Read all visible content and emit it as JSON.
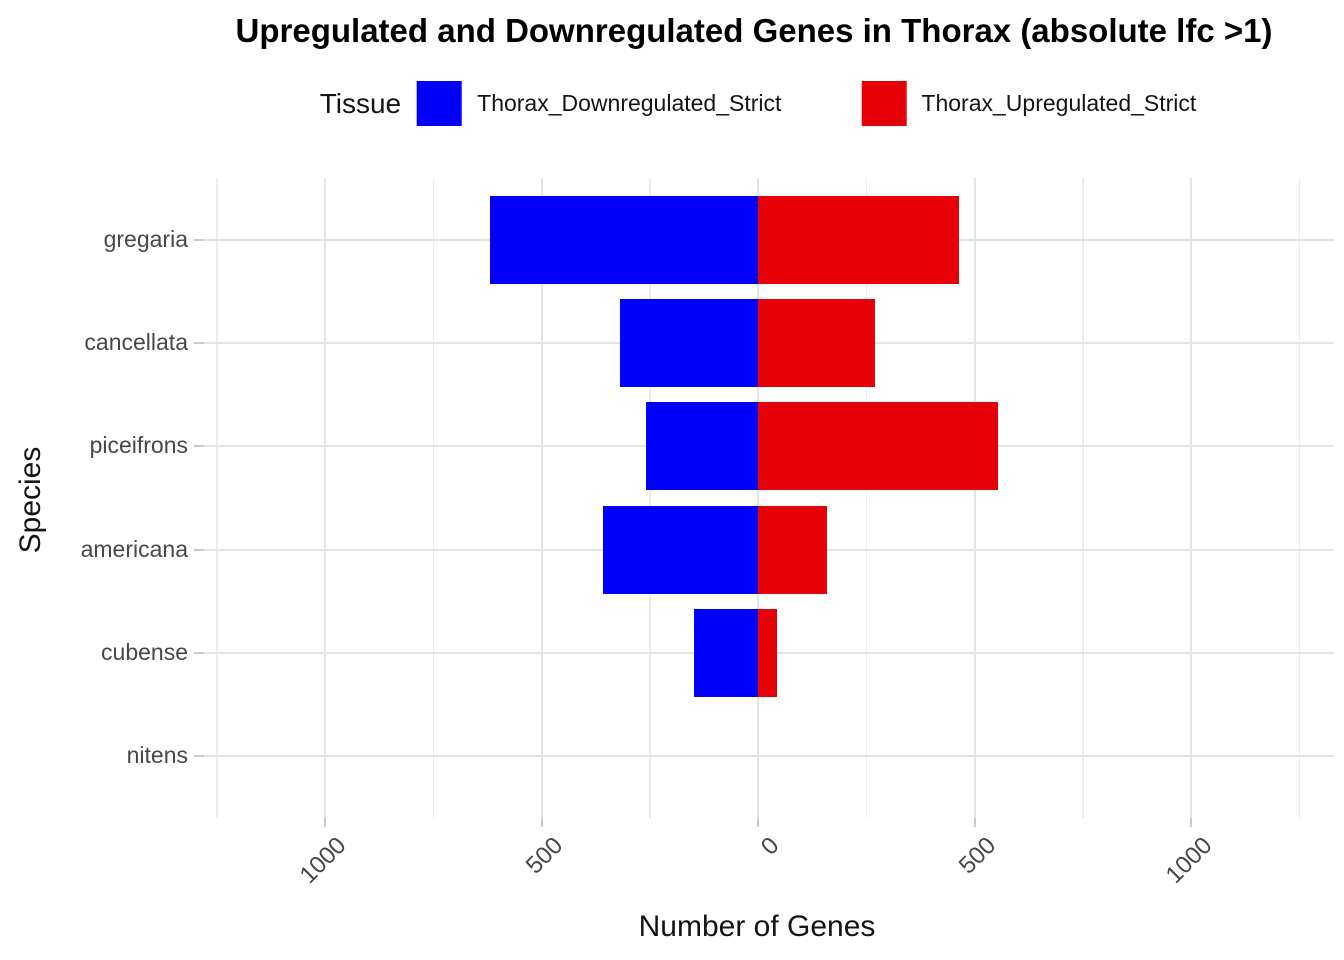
{
  "chart_data": {
    "type": "bar",
    "orientation": "horizontal-diverging",
    "title": "Upregulated and Downregulated Genes in Thorax (absolute lfc >1)",
    "xlabel": "Number of Genes",
    "ylabel": "Species",
    "legend_title": "Tissue",
    "legend_position": "top-center",
    "grid": "on",
    "categories": [
      "gregaria",
      "cancellata",
      "piceifrons",
      "americana",
      "cubense",
      "nitens"
    ],
    "series": [
      {
        "name": "Thorax_Downregulated_Strict",
        "color": "#0000ff",
        "direction": "negative",
        "values": [
          620,
          320,
          258,
          358,
          148,
          0
        ]
      },
      {
        "name": "Thorax_Upregulated_Strict",
        "color": "#e60008",
        "direction": "positive",
        "values": [
          465,
          270,
          555,
          158,
          44,
          0
        ]
      }
    ],
    "x_ticks": [
      -1000,
      -500,
      0,
      500,
      1000
    ],
    "x_tick_labels": [
      "1000",
      "500",
      "0",
      "500",
      "1000"
    ],
    "xlim": [
      -1280,
      1330
    ],
    "minor_grid_step": 250,
    "colors": {
      "downregulated": "#0000ff",
      "upregulated": "#e60008",
      "grid_major": "#e3e3e3",
      "grid_minor": "#ededed",
      "tick_mark": "#c9c9c9",
      "tick_text": "#474747"
    }
  }
}
